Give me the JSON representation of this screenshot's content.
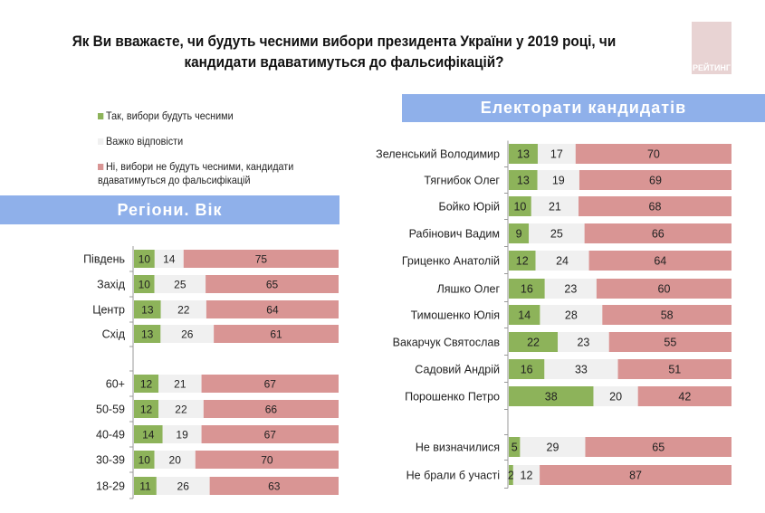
{
  "title": "Як Ви вважаєте, чи будуть чесними вибори президента України у 2019 році, чи кандидати вдаватимуться до фальсифікацій?",
  "logo_text": "РЕЙТИНГ",
  "colors": {
    "yes": "#8db35a",
    "hard": "#f0f0f0",
    "no": "#d99594",
    "banner": "#8fb0ea"
  },
  "chart_data": [
    {
      "type": "bar",
      "stacked": true,
      "orientation": "horizontal",
      "title": "Регіони. Вік",
      "legend": [
        "Так, вибори будуть чесними",
        "Важко відповісти",
        "Ні, вибори не будуть чесними, кандидати вдаватимуться до фальсифікацій"
      ],
      "categories": [
        "Південь",
        "Захід",
        "Центр",
        "Схід",
        "",
        "60+",
        "50-59",
        "40-49",
        "30-39",
        "18-29"
      ],
      "series": [
        {
          "name": "Так, вибори будуть чесними",
          "values": [
            10,
            10,
            13,
            13,
            null,
            12,
            12,
            14,
            10,
            11
          ]
        },
        {
          "name": "Важко відповісти",
          "values": [
            14,
            25,
            22,
            26,
            null,
            21,
            22,
            19,
            20,
            26
          ]
        },
        {
          "name": "Ні, вибори не будуть чесними, кандидати вдаватимуться до фальсифікацій",
          "values": [
            75,
            65,
            64,
            61,
            null,
            67,
            66,
            67,
            70,
            63
          ]
        }
      ]
    },
    {
      "type": "bar",
      "stacked": true,
      "orientation": "horizontal",
      "title": "Електорати кандидатів",
      "categories": [
        "Зеленський Володимир",
        "Тягнибок Олег",
        "Бойко Юрій",
        "Рабінович Вадим",
        "Гриценко Анатолій",
        "Ляшко Олег",
        "Тимошенко Юлія",
        "Вакарчук Святослав",
        "Садовий Андрій",
        "Порошенко Петро",
        "",
        "Не визначилися",
        "Не брали б участі"
      ],
      "series": [
        {
          "name": "Так, вибори будуть чесними",
          "values": [
            13,
            13,
            10,
            9,
            12,
            16,
            14,
            22,
            16,
            38,
            null,
            5,
            2
          ]
        },
        {
          "name": "Важко відповісти",
          "values": [
            17,
            19,
            21,
            25,
            24,
            23,
            28,
            23,
            33,
            20,
            null,
            29,
            12
          ]
        },
        {
          "name": "Ні, вибори не будуть чесними, кандидати вдаватимуться до фальсифікацій",
          "values": [
            70,
            69,
            68,
            66,
            64,
            60,
            58,
            55,
            51,
            42,
            null,
            65,
            87
          ]
        }
      ]
    }
  ]
}
